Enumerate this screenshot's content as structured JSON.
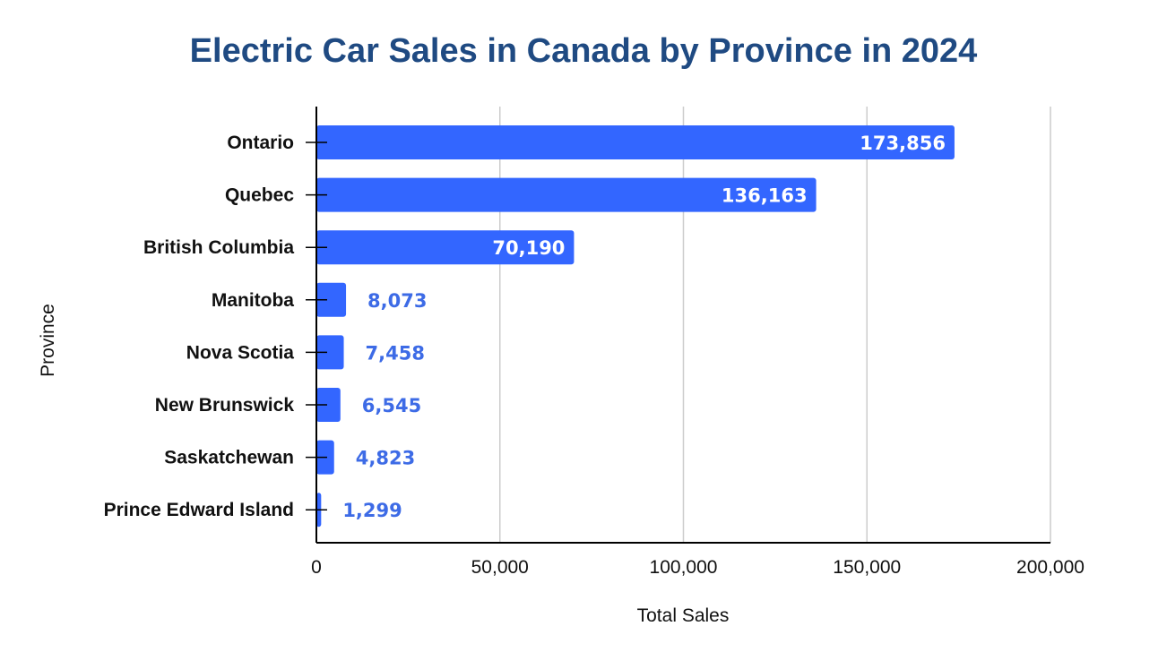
{
  "chart_data": {
    "type": "bar",
    "orientation": "horizontal",
    "title": "Electric Car Sales in Canada by Province in 2024",
    "xlabel": "Total Sales",
    "ylabel": "Province",
    "categories": [
      "Ontario",
      "Quebec",
      "British Columbia",
      "Manitoba",
      "Nova Scotia",
      "New Brunswick",
      "Saskatchewan",
      "Prince Edward Island"
    ],
    "values": [
      173856,
      136163,
      70190,
      8073,
      7458,
      6545,
      4823,
      1299
    ],
    "data_labels": [
      "173,856",
      "136,163",
      "70,190",
      "8,073",
      "7,458",
      "6,545",
      "4,823",
      "1,299"
    ],
    "xlim": [
      0,
      200000
    ],
    "x_ticks": [
      0,
      50000,
      100000,
      150000,
      200000
    ],
    "x_tick_labels": [
      "0",
      "50,000",
      "100,000",
      "150,000",
      "200,000"
    ],
    "grid": "vertical",
    "legend": "none",
    "bar_color": "#3366ff",
    "title_color": "#1f4a82",
    "outside_label_color": "#3d6be6",
    "inside_label_color": "#ffffff",
    "gridline_color": "#cccccc"
  }
}
